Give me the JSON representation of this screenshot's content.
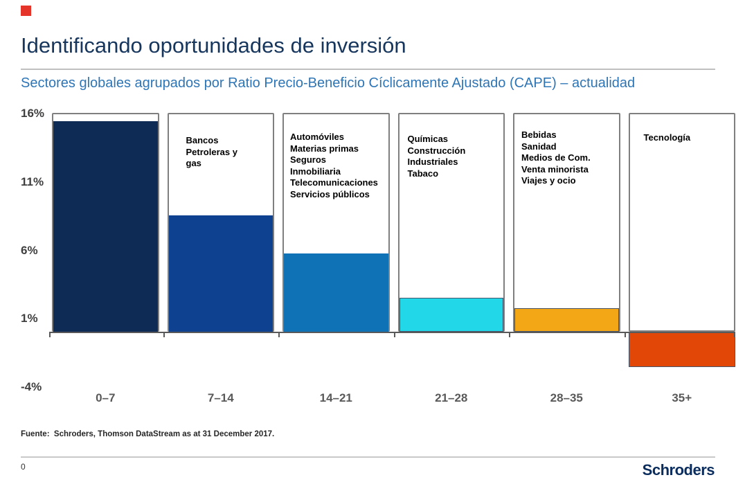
{
  "slide": {
    "title": "Identificando oportunidades de inversión",
    "subtitle": "Sectores globales agrupados por Ratio Precio-Beneficio Cíclicamente Ajustado (CAPE) – actualidad",
    "source": "Fuente:  Schroders, Thomson DataStream as at 31 December 2017.",
    "page_number": "0",
    "logo_text": "Schroders",
    "colors": {
      "brand_red": "#E5352B",
      "title": "#17365D",
      "subtitle": "#2E75B6",
      "logo": "#0A2D5E"
    }
  },
  "chart_data": {
    "type": "bar",
    "title": "",
    "xlabel": "",
    "ylabel": "",
    "ylim": [
      -4,
      16
    ],
    "grid": false,
    "legend": false,
    "ytick_labels": [
      "16%",
      "11%",
      "6%",
      "1%",
      "-4%"
    ],
    "ytick_values": [
      16,
      11,
      6,
      1,
      -4
    ],
    "categories": [
      "0–7",
      "7–14",
      "14–21",
      "21–28",
      "28–35",
      "35+"
    ],
    "values": [
      15.4,
      8.5,
      5.7,
      2.5,
      1.7,
      -2.6
    ],
    "bar_colors": [
      "#0D2B55",
      "#0E4291",
      "#0F72B7",
      "#22D8E8",
      "#F3A616",
      "#E34708"
    ],
    "bar_borders": [
      "none",
      "none",
      "none",
      "#44546A",
      "#44546A",
      "#44546A"
    ],
    "sector_labels": [
      [],
      [
        "Bancos",
        "Petroleras y",
        "gas"
      ],
      [
        "Automóviles",
        "Materias primas",
        "Seguros",
        "Inmobiliaria",
        "Telecomunicaciones",
        "Servicios públicos"
      ],
      [
        "Químicas",
        "Construcción",
        "Industriales",
        "Tabaco"
      ],
      [
        "Bebidas",
        "Sanidad",
        "Medios de Com.",
        "Venta minorista",
        "Viajes y ocio"
      ],
      [
        "Tecnología"
      ]
    ]
  }
}
